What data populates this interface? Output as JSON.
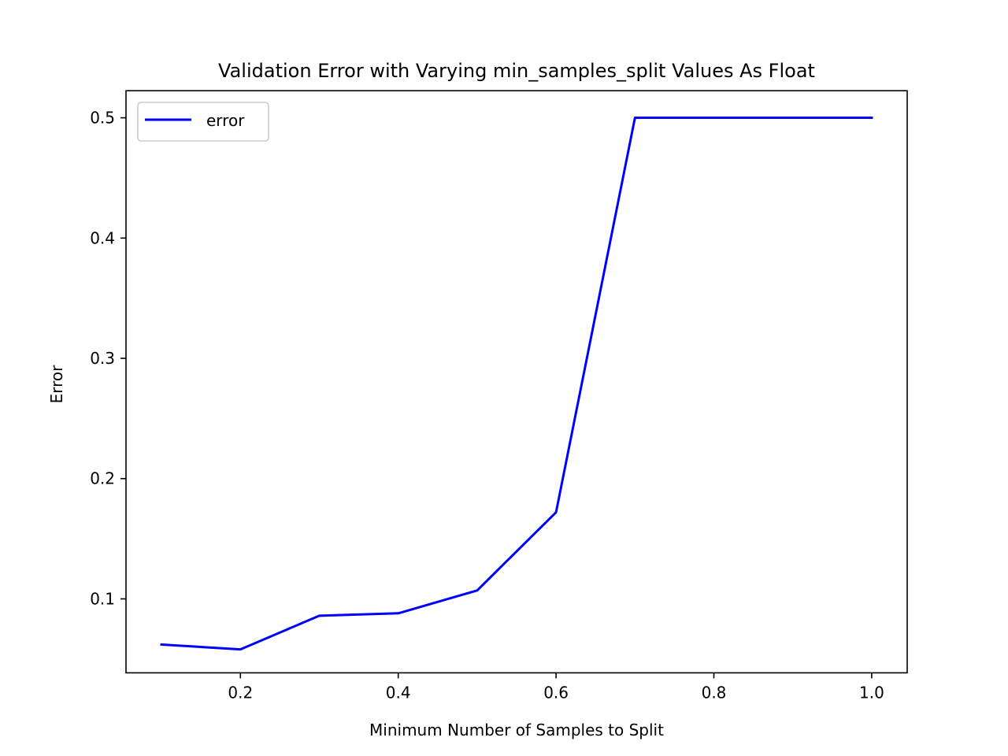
{
  "chart_data": {
    "type": "line",
    "title": "Validation Error with Varying min_samples_split Values As Float",
    "xlabel": "Minimum Number of Samples to Split",
    "ylabel": "Error",
    "xlim": [
      0.055,
      1.045
    ],
    "ylim": [
      0.0385,
      0.5225
    ],
    "x_ticks": [
      0.2,
      0.4,
      0.6,
      0.8,
      1.0
    ],
    "x_tick_labels": [
      "0.2",
      "0.4",
      "0.6",
      "0.8",
      "1.0"
    ],
    "y_ticks": [
      0.1,
      0.2,
      0.3,
      0.4,
      0.5
    ],
    "y_tick_labels": [
      "0.1",
      "0.2",
      "0.3",
      "0.4",
      "0.5"
    ],
    "grid": false,
    "legend_position": "upper-left",
    "series": [
      {
        "name": "error",
        "color": "#0000ff",
        "x": [
          0.1,
          0.2,
          0.3,
          0.4,
          0.5,
          0.6,
          0.7,
          0.8,
          0.9,
          1.0
        ],
        "y": [
          0.062,
          0.058,
          0.086,
          0.088,
          0.107,
          0.172,
          0.5,
          0.5,
          0.5,
          0.5
        ]
      }
    ]
  }
}
